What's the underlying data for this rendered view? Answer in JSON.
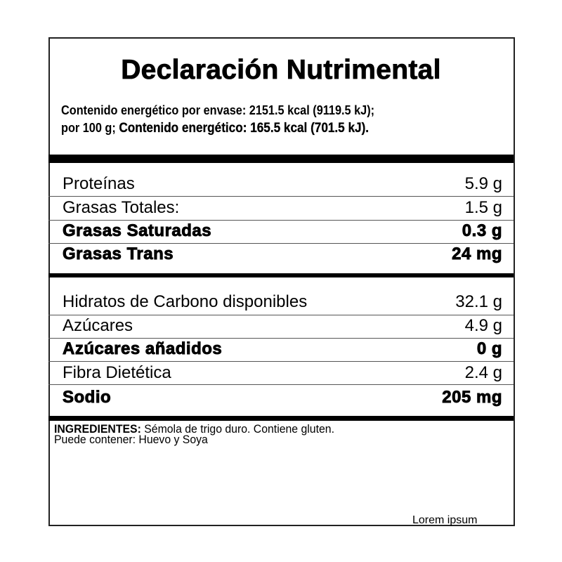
{
  "title": "Declaración Nutrimental",
  "energy": {
    "line1": "Contenido energético por envase: 2151.5 kcal (9119.5 kJ);",
    "line2_prefix": "por 100 g;",
    "line2_bold": "Contenido energético: 165.5 kcal (701.5 kJ)."
  },
  "section1": [
    {
      "label": "Proteínas",
      "value": "5.9 g",
      "bold": false
    },
    {
      "label": "Grasas Totales:",
      "value": "1.5 g",
      "bold": false
    },
    {
      "label": "Grasas Saturadas",
      "value": "0.3 g",
      "bold": true
    },
    {
      "label": "Grasas Trans",
      "value": "24 mg",
      "bold": true
    }
  ],
  "section2": [
    {
      "label": "Hidratos de Carbono disponibles",
      "value": "32.1 g",
      "bold": false
    },
    {
      "label": "Azúcares",
      "value": "4.9 g",
      "bold": false
    },
    {
      "label": "Azúcares añadidos",
      "value": "0 g",
      "bold": true
    },
    {
      "label": "Fibra Dietética",
      "value": "2.4 g",
      "bold": false
    },
    {
      "label": "Sodio",
      "value": "205 mg",
      "bold": true
    }
  ],
  "ingredients": {
    "heading": "INGREDIENTES:",
    "text": " Sémola de trigo duro. Contiene gluten.",
    "line2": "Puede contener: Huevo y Soya"
  },
  "footer": "Lorem ipsum"
}
